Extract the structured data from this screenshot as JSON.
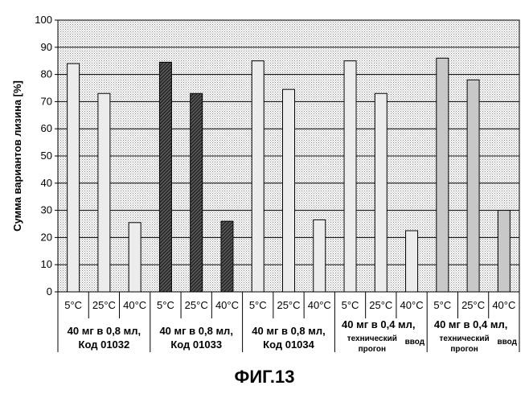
{
  "chart_data": {
    "type": "bar",
    "ylabel": "Сумма вариантов лизина [%]",
    "ylim": [
      0,
      100
    ],
    "yticks": [
      "0",
      "10",
      "20",
      "30",
      "40",
      "50",
      "60",
      "70",
      "80",
      "90",
      "100"
    ],
    "grid": true,
    "categories": [
      "5°C",
      "25°C",
      "40°C",
      "5°C",
      "25°C",
      "40°C",
      "5°C",
      "25°C",
      "40°C",
      "5°C",
      "25°C",
      "40°C",
      "5°C",
      "25°C",
      "40°C"
    ],
    "values": [
      84,
      73,
      25.5,
      84.5,
      73,
      26,
      85,
      74.5,
      26.5,
      85,
      73,
      22.5,
      86,
      78,
      30
    ],
    "groups": [
      {
        "line1": "40 мг в 0,8 мл,",
        "line2": "Код 01032"
      },
      {
        "line1": "40 мг в 0,8 мл,",
        "line2": "Код 01033"
      },
      {
        "line1": "40 мг в 0,8 мл,",
        "line2": "Код 01034"
      },
      {
        "line1": "40 мг в 0,4 мл,",
        "line2": "технический",
        "line3": "прогон",
        "extra": "ввод"
      },
      {
        "line1": "40 мг в 0,4 мл,",
        "line2": "технический",
        "line3": "прогон",
        "extra": "ввод"
      }
    ],
    "colors": {
      "plot_bg": "#e4e4e4",
      "bar_light": "#ececec",
      "bar_dark": "#4a4a4a",
      "bar_medium": "#c8c8c8",
      "border": "#000000"
    }
  },
  "figure_caption": "ФИГ.13"
}
